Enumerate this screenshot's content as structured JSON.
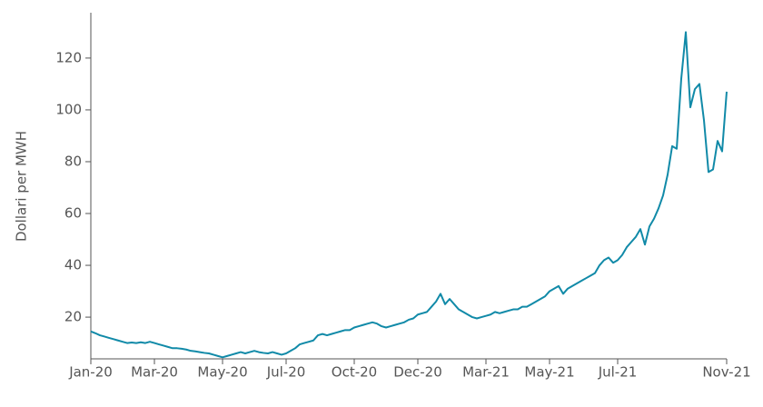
{
  "chart_data": {
    "type": "line",
    "y_label": "Dollari per MWH",
    "categories": [
      "Jan-20",
      null,
      null,
      null,
      null,
      null,
      null,
      null,
      null,
      null,
      null,
      null,
      null,
      null,
      "Mar-20",
      null,
      null,
      null,
      null,
      null,
      null,
      null,
      null,
      null,
      null,
      null,
      null,
      null,
      null,
      "May-20",
      null,
      null,
      null,
      null,
      null,
      null,
      null,
      null,
      null,
      null,
      null,
      null,
      null,
      "Jul-20",
      null,
      null,
      null,
      null,
      null,
      null,
      null,
      null,
      null,
      null,
      null,
      null,
      null,
      null,
      "Oct-20",
      null,
      null,
      null,
      null,
      null,
      null,
      null,
      null,
      null,
      null,
      null,
      null,
      null,
      "Dec-20",
      null,
      null,
      null,
      null,
      null,
      null,
      null,
      null,
      null,
      null,
      null,
      null,
      null,
      null,
      "Mar-21",
      null,
      null,
      null,
      null,
      null,
      null,
      null,
      null,
      null,
      null,
      null,
      null,
      null,
      "May-21",
      null,
      null,
      null,
      null,
      null,
      null,
      null,
      null,
      null,
      null,
      null,
      null,
      null,
      null,
      "Jul-21",
      null,
      null,
      null,
      null,
      null,
      null,
      null,
      null,
      null,
      null,
      null,
      null,
      null,
      null,
      null,
      null,
      null,
      null,
      null,
      null,
      null,
      null,
      null,
      "Nov-21"
    ],
    "values": [
      14.5,
      13.8,
      13,
      12.5,
      12,
      11.5,
      11,
      10.5,
      10,
      10.2,
      10,
      10.3,
      10,
      10.5,
      10,
      9.5,
      9,
      8.5,
      8,
      8,
      7.8,
      7.5,
      7,
      6.8,
      6.5,
      6.2,
      6,
      5.5,
      5,
      4.5,
      5,
      5.5,
      6,
      6.5,
      6,
      6.5,
      7,
      6.5,
      6.2,
      6,
      6.5,
      6,
      5.5,
      6,
      7,
      8,
      9.5,
      10,
      10.5,
      11,
      13,
      13.5,
      13,
      13.5,
      14,
      14.5,
      15,
      15,
      16,
      16.5,
      17,
      17.5,
      18,
      17.5,
      16.5,
      16,
      16.5,
      17,
      17.5,
      18,
      19,
      19.5,
      21,
      21.5,
      22,
      24,
      26,
      29,
      25,
      27,
      25,
      23,
      22,
      21,
      20,
      19.5,
      20,
      20.5,
      21,
      22,
      21.5,
      22,
      22.5,
      23,
      23,
      24,
      24,
      25,
      26,
      27,
      28,
      30,
      31,
      32,
      29,
      31,
      32,
      33,
      34,
      35,
      36,
      37,
      40,
      42,
      43,
      41,
      42,
      44,
      47,
      49,
      51,
      54,
      48,
      55,
      58,
      62,
      67,
      75,
      86,
      85,
      112,
      130,
      101,
      108,
      110,
      96,
      76,
      77,
      88,
      84,
      107
    ],
    "color": "#118aa8",
    "ylim": [
      3.9,
      137.5
    ],
    "yticks": [
      20,
      40,
      60,
      80,
      100,
      120
    ]
  }
}
